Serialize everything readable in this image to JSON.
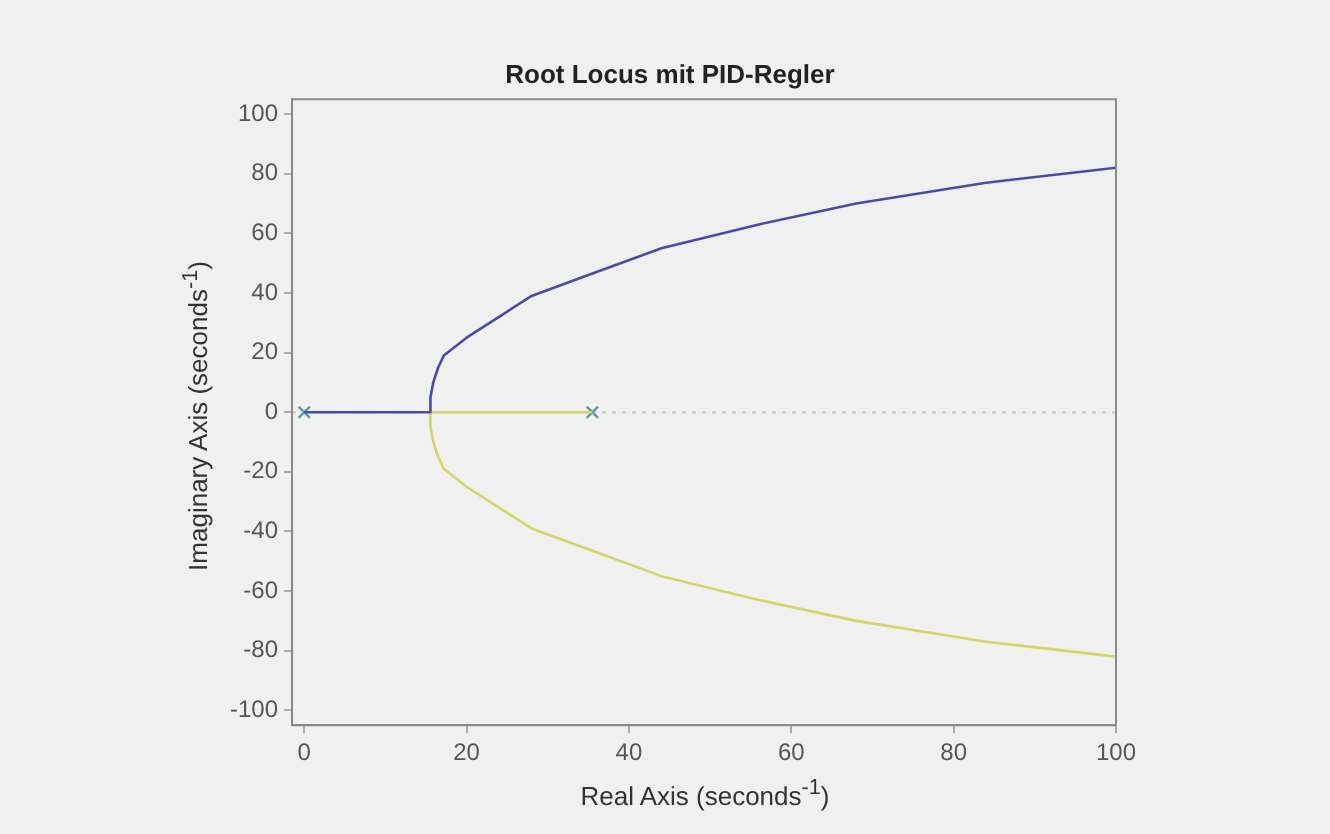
{
  "chart_data": {
    "type": "line",
    "title": "Root Locus mit PID-Regler",
    "xlabel": "Real Axis (seconds$^{-1}$)",
    "ylabel": "Imaginary Axis (seconds$^{-1}$)",
    "series": [
      {
        "color": "#4a4aa8",
        "x": [
          0,
          15.5,
          15.5,
          15.6,
          15.9,
          16.5,
          17.2,
          20,
          24,
          28,
          35,
          44,
          56,
          68,
          84,
          100
        ],
        "values": [
          0,
          0,
          0,
          5,
          10,
          15,
          19,
          25,
          32,
          39,
          46,
          55,
          63,
          70,
          77,
          82
        ]
      },
      {
        "color": "#d4d46a",
        "x": [
          35.5,
          15.5,
          15.5,
          15.6,
          15.9,
          16.5,
          17.2,
          20,
          24,
          28,
          35,
          44,
          56,
          68,
          84,
          100
        ],
        "values": [
          0,
          0,
          0,
          -5,
          -10,
          -15,
          -19,
          -25,
          -32,
          -39,
          -46,
          -55,
          -63,
          -70,
          -77,
          -82
        ]
      },
      {
        "type": "scatter",
        "color": "#5a9aa8",
        "marker": "cross",
        "x": [
          0,
          35.5
        ],
        "values": [
          0,
          0
        ]
      }
    ],
    "ref_lines": [
      {
        "axis": "y",
        "value": 0,
        "color": "#c8c8c8",
        "line_style": "dotted"
      }
    ],
    "xlim": [
      -1.5,
      100
    ],
    "xticks": [
      0,
      20,
      40,
      60,
      80,
      100
    ],
    "ylim": [
      -105,
      105
    ],
    "yticks": [
      -100,
      -80,
      -60,
      -40,
      -20,
      0,
      20,
      40,
      60,
      80,
      100
    ],
    "grid": false,
    "legend": false,
    "line_style": "solid",
    "marker": "none"
  }
}
